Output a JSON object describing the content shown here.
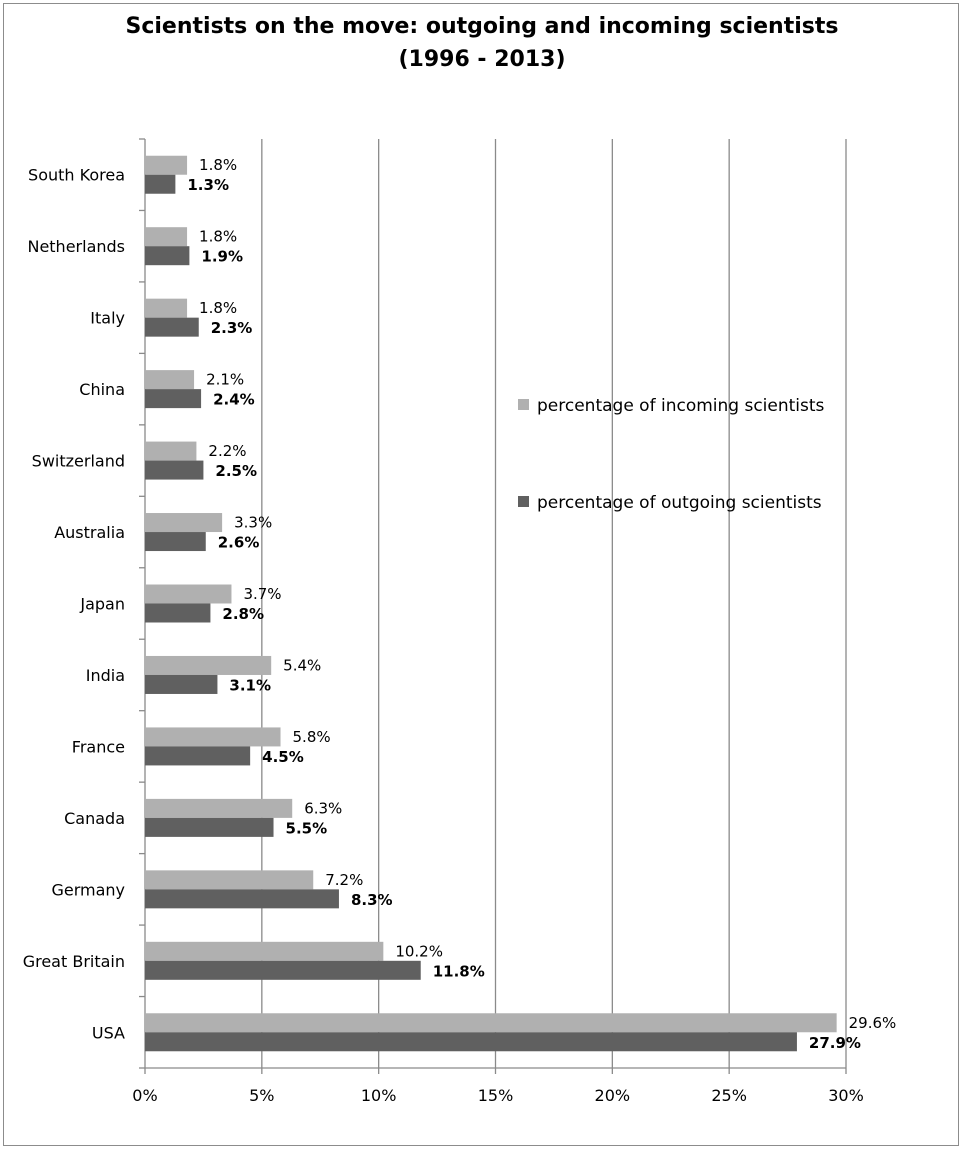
{
  "chart_data": {
    "type": "bar",
    "orientation": "horizontal",
    "title_line1": "Scientists on the move: outgoing and incoming scientists",
    "title_line2": "(1996 - 2013)",
    "categories": [
      "South Korea",
      "Netherlands",
      "Italy",
      "China",
      "Switzerland",
      "Australia",
      "Japan",
      "India",
      "France",
      "Canada",
      "Germany",
      "Great Britain",
      "USA"
    ],
    "series": [
      {
        "name": "percentage of incoming scientists",
        "color": "#b0b0b0",
        "values": [
          1.8,
          1.8,
          1.8,
          2.1,
          2.2,
          3.3,
          3.7,
          5.4,
          5.8,
          6.3,
          7.2,
          10.2,
          29.6
        ],
        "labels": [
          "1.8%",
          "1.8%",
          "1.8%",
          "2.1%",
          "2.2%",
          "3.3%",
          "3.7%",
          "5.4%",
          "5.8%",
          "6.3%",
          "7.2%",
          "10.2%",
          "29.6%"
        ]
      },
      {
        "name": "percentage of outgoing scientists",
        "color": "#606060",
        "values": [
          1.3,
          1.9,
          2.3,
          2.4,
          2.5,
          2.6,
          2.8,
          3.1,
          4.5,
          5.5,
          8.3,
          11.8,
          27.9
        ],
        "labels": [
          "1.3%",
          "1.9%",
          "2.3%",
          "2.4%",
          "2.5%",
          "2.6%",
          "2.8%",
          "3.1%",
          "4.5%",
          "5.5%",
          "8.3%",
          "11.8%",
          "27.9%"
        ]
      }
    ],
    "xlim": [
      0,
      30
    ],
    "xticks": [
      0,
      5,
      10,
      15,
      20,
      25,
      30
    ],
    "xtick_labels": [
      "0%",
      "5%",
      "10%",
      "15%",
      "20%",
      "25%",
      "30%"
    ],
    "grid": true,
    "legend_position": "right"
  }
}
